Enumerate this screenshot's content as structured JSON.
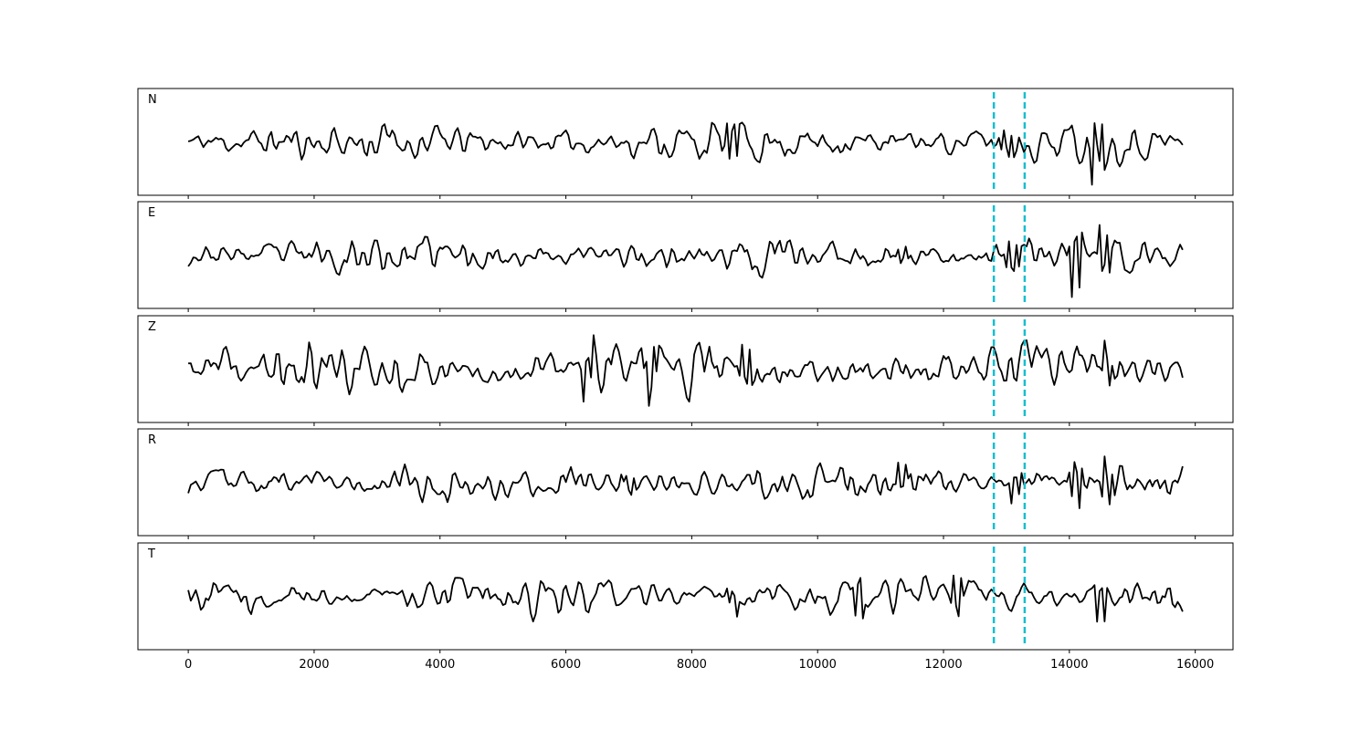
{
  "chart_data": {
    "type": "line",
    "xlim": [
      -800,
      16600
    ],
    "x_ticks": [
      0,
      2000,
      4000,
      6000,
      8000,
      10000,
      12000,
      14000,
      16000
    ],
    "x_tick_labels": [
      "0",
      "2000",
      "4000",
      "6000",
      "8000",
      "10000",
      "12000",
      "14000",
      "16000"
    ],
    "x_range": [
      0,
      15800
    ],
    "markers": [
      12800,
      13290
    ],
    "marker_color": "#17becf",
    "trace_color": "#000000",
    "grid": false,
    "panels": [
      {
        "label": "N",
        "seed": 11,
        "noise_amp": 0.32,
        "ylim": [
          -1.0,
          1.0
        ],
        "events": [
          {
            "x": 13000,
            "amp": 0.45
          },
          {
            "x": 14450,
            "amp": 0.85
          },
          {
            "x": 8650,
            "amp": 0.55
          }
        ]
      },
      {
        "label": "E",
        "seed": 23,
        "noise_amp": 0.3,
        "ylim": [
          -1.0,
          1.0
        ],
        "events": [
          {
            "x": 13100,
            "amp": 0.7
          },
          {
            "x": 14100,
            "amp": 0.95
          },
          {
            "x": 14550,
            "amp": 0.6
          },
          {
            "x": 11350,
            "amp": 0.45
          }
        ]
      },
      {
        "label": "Z",
        "seed": 37,
        "noise_amp": 0.42,
        "ylim": [
          -1.0,
          1.0
        ],
        "events": [
          {
            "x": 6350,
            "amp": 0.7
          },
          {
            "x": 7350,
            "amp": 0.65
          },
          {
            "x": 8850,
            "amp": 0.6
          },
          {
            "x": 14600,
            "amp": 0.45
          }
        ]
      },
      {
        "label": "R",
        "seed": 53,
        "noise_amp": 0.3,
        "ylim": [
          -1.0,
          1.0
        ],
        "events": [
          {
            "x": 13150,
            "amp": 0.8
          },
          {
            "x": 14100,
            "amp": 0.95
          },
          {
            "x": 14600,
            "amp": 0.7
          },
          {
            "x": 11350,
            "amp": 0.45
          },
          {
            "x": 7000,
            "amp": 0.45
          }
        ]
      },
      {
        "label": "T",
        "seed": 71,
        "noise_amp": 0.32,
        "ylim": [
          -1.0,
          1.0
        ],
        "events": [
          {
            "x": 14500,
            "amp": 0.95
          },
          {
            "x": 12200,
            "amp": 0.55
          },
          {
            "x": 8650,
            "amp": 0.5
          },
          {
            "x": 10650,
            "amp": 0.45
          }
        ]
      }
    ]
  }
}
